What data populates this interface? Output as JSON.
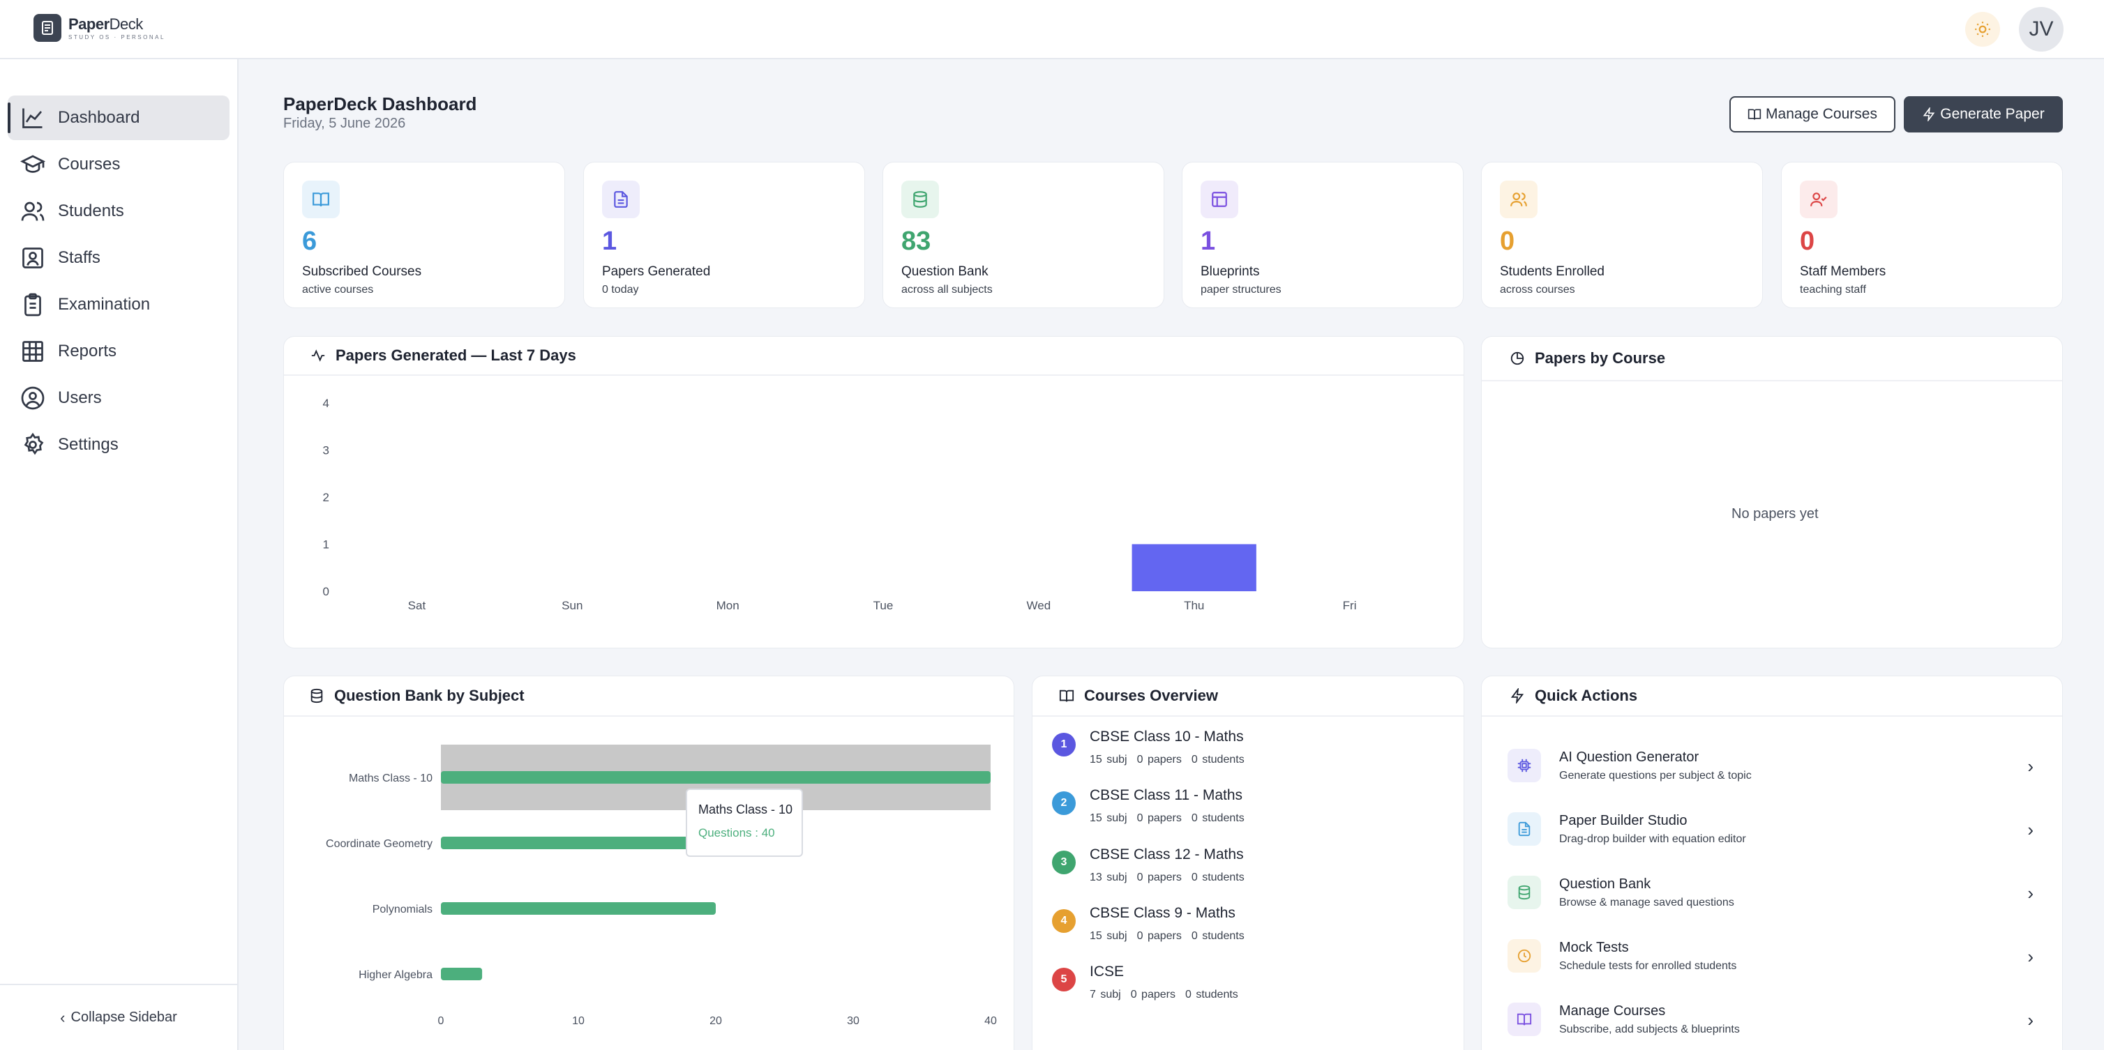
{
  "app": {
    "logo_name_bold": "Paper",
    "logo_name_light": "Deck",
    "logo_sub": "STUDY OS · PERSONAL",
    "avatar_initials": "JV"
  },
  "sidebar": {
    "items": [
      {
        "label": "Dashboard",
        "icon": "line-chart-icon",
        "active": true
      },
      {
        "label": "Courses",
        "icon": "graduation-cap-icon"
      },
      {
        "label": "Students",
        "icon": "users-icon"
      },
      {
        "label": "Staffs",
        "icon": "id-badge-icon"
      },
      {
        "label": "Examination",
        "icon": "clipboard-icon"
      },
      {
        "label": "Reports",
        "icon": "grid-icon"
      },
      {
        "label": "Users",
        "icon": "user-circle-icon"
      },
      {
        "label": "Settings",
        "icon": "gear-icon"
      }
    ],
    "collapse_label": "Collapse Sidebar"
  },
  "header": {
    "title": "PaperDeck Dashboard",
    "date": "Friday, 5 June 2026",
    "manage_courses": "Manage Courses",
    "generate_paper": "Generate Paper"
  },
  "stats": [
    {
      "value": "6",
      "label": "Subscribed Courses",
      "sub": "active courses",
      "color": "#3b9ad9",
      "bg": "#e8f3fb",
      "icon": "book-icon"
    },
    {
      "value": "1",
      "label": "Papers Generated",
      "sub": "0 today",
      "color": "#5b57e0",
      "bg": "#eeedfb",
      "icon": "file-icon"
    },
    {
      "value": "83",
      "label": "Question Bank",
      "sub": "across all subjects",
      "color": "#3fa56f",
      "bg": "#e7f5ed",
      "icon": "database-icon"
    },
    {
      "value": "1",
      "label": "Blueprints",
      "sub": "paper structures",
      "color": "#7a50e0",
      "bg": "#f0ebfb",
      "icon": "layout-icon"
    },
    {
      "value": "0",
      "label": "Students Enrolled",
      "sub": "across courses",
      "color": "#e6a030",
      "bg": "#fdf3e3",
      "icon": "users-icon"
    },
    {
      "value": "0",
      "label": "Staff Members",
      "sub": "teaching staff",
      "color": "#dc4545",
      "bg": "#fcebeb",
      "icon": "user-check-icon"
    }
  ],
  "papers_panel": {
    "title": "Papers Generated — Last 7 Days"
  },
  "course_panel": {
    "title": "Papers by Course",
    "empty": "No papers yet"
  },
  "qbank_panel": {
    "title": "Question Bank by Subject"
  },
  "tooltip": {
    "title": "Maths Class - 10",
    "value": "Questions : 40"
  },
  "courses_panel": {
    "title": "Courses Overview",
    "items": [
      {
        "num": "1",
        "name": "CBSE Class 10 - Maths",
        "subj": "15 subj",
        "papers": "0 papers",
        "students": "0 students",
        "color": "#5b57e0"
      },
      {
        "num": "2",
        "name": "CBSE Class 11 - Maths",
        "subj": "15 subj",
        "papers": "0 papers",
        "students": "0 students",
        "color": "#3b9ad9"
      },
      {
        "num": "3",
        "name": "CBSE Class 12 - Maths",
        "subj": "13 subj",
        "papers": "0 papers",
        "students": "0 students",
        "color": "#3fa56f"
      },
      {
        "num": "4",
        "name": "CBSE Class 9 - Maths",
        "subj": "15 subj",
        "papers": "0 papers",
        "students": "0 students",
        "color": "#e6a030"
      },
      {
        "num": "5",
        "name": "ICSE",
        "subj": "7 subj",
        "papers": "0 papers",
        "students": "0 students",
        "color": "#dc4545"
      }
    ]
  },
  "quick_actions": {
    "title": "Quick Actions",
    "items": [
      {
        "title": "AI Question Generator",
        "sub": "Generate questions per subject & topic",
        "color": "#5b57e0",
        "bg": "#eeedfb",
        "icon": "cpu-icon"
      },
      {
        "title": "Paper Builder Studio",
        "sub": "Drag-drop builder with equation editor",
        "color": "#3b9ad9",
        "bg": "#e8f3fb",
        "icon": "file-icon"
      },
      {
        "title": "Question Bank",
        "sub": "Browse & manage saved questions",
        "color": "#3fa56f",
        "bg": "#e7f5ed",
        "icon": "database-icon"
      },
      {
        "title": "Mock Tests",
        "sub": "Schedule tests for enrolled students",
        "color": "#e6a030",
        "bg": "#fdf3e3",
        "icon": "clock-icon"
      },
      {
        "title": "Manage Courses",
        "sub": "Subscribe, add subjects & blueprints",
        "color": "#7a50e0",
        "bg": "#f0ebfb",
        "icon": "book-icon"
      }
    ]
  },
  "chart_data": [
    {
      "type": "bar",
      "title": "Papers Generated — Last 7 Days",
      "categories": [
        "Sat",
        "Sun",
        "Mon",
        "Tue",
        "Wed",
        "Thu",
        "Fri"
      ],
      "values": [
        0,
        0,
        0,
        0,
        0,
        1,
        0
      ],
      "yticks": [
        "0",
        "1",
        "2",
        "3",
        "4"
      ],
      "ylim": [
        0,
        4
      ],
      "color": "#6366f1"
    },
    {
      "type": "bar",
      "orientation": "horizontal",
      "title": "Question Bank by Subject",
      "categories": [
        "Maths Class - 10",
        "Coordinate Geometry",
        "Polynomials",
        "Higher Algebra"
      ],
      "values": [
        40,
        18,
        20,
        3
      ],
      "xticks": [
        "0",
        "10",
        "20",
        "30",
        "40"
      ],
      "xlim": [
        0,
        40
      ],
      "color": "#4caf7d",
      "highlighted": "Maths Class - 10"
    }
  ]
}
